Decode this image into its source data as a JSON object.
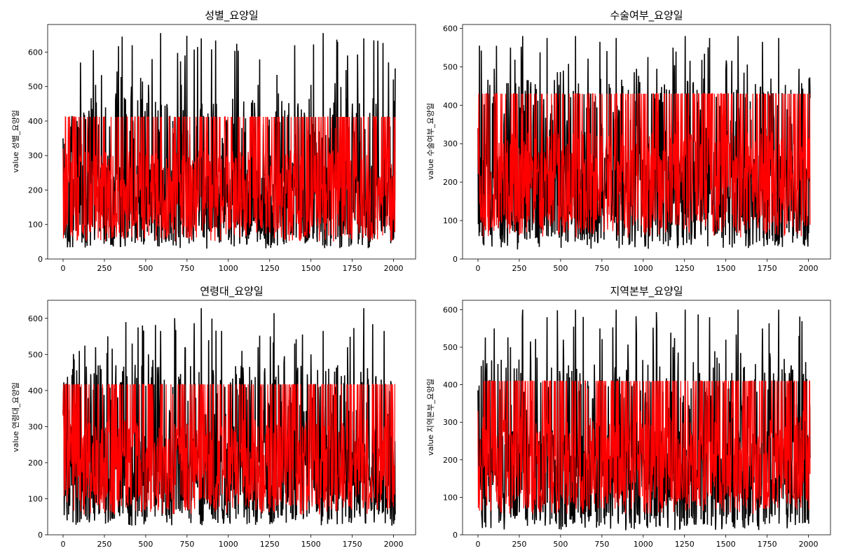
{
  "colors": {
    "series_black": "#000000",
    "series_red": "#ff0000"
  },
  "chart_data": [
    {
      "type": "line",
      "title": "성별_요양일",
      "xlabel": "",
      "ylabel": "value 성별_요양일",
      "xlim": [
        0,
        2040
      ],
      "ylim": [
        0,
        680
      ],
      "xticks": [
        0,
        250,
        500,
        750,
        1000,
        1250,
        1500,
        1750,
        2000
      ],
      "yticks": [
        0,
        100,
        200,
        300,
        400,
        500,
        600
      ],
      "grid": false,
      "series": [
        {
          "color": "#000000",
          "n_points": 2040,
          "typical_range": [
            30,
            655
          ],
          "values_sample": [
            350,
            90,
            310,
            150,
            380,
            60,
            240,
            110,
            505,
            80,
            195,
            300,
            45,
            480,
            130,
            260,
            70,
            620,
            140,
            210,
            50,
            505,
            310,
            90,
            655,
            180,
            60,
            400,
            250,
            100,
            590,
            45,
            270,
            160,
            640,
            210,
            80,
            450,
            130,
            300
          ]
        },
        {
          "color": "#ff0000",
          "n_points": 2040,
          "typical_range": [
            50,
            412
          ],
          "cap": 412,
          "values_sample": [
            320,
            100,
            280,
            160,
            240,
            70,
            412,
            120,
            300,
            90,
            210,
            270,
            60,
            412,
            150,
            230,
            80,
            412,
            140,
            200,
            60,
            412,
            300,
            100,
            412,
            170,
            70,
            380,
            240,
            110,
            412,
            60,
            260,
            150,
            412,
            200,
            90,
            412,
            140,
            290
          ]
        }
      ]
    },
    {
      "type": "line",
      "title": "수술여부_요양일",
      "xlabel": "",
      "ylabel": "value 수술여부_요양일",
      "xlim": [
        0,
        2040
      ],
      "ylim": [
        0,
        610
      ],
      "xticks": [
        0,
        250,
        500,
        750,
        1000,
        1250,
        1500,
        1750,
        2000
      ],
      "yticks": [
        0,
        100,
        200,
        300,
        400,
        500,
        600
      ],
      "grid": false,
      "series": [
        {
          "color": "#000000",
          "n_points": 2040,
          "typical_range": [
            25,
            580
          ],
          "values_sample": [
            340,
            60,
            300,
            140,
            495,
            80,
            230,
            110,
            550,
            70,
            190,
            580,
            50,
            460,
            130,
            255,
            75,
            575,
            140,
            200,
            55,
            490,
            300,
            90,
            580,
            170,
            65,
            410,
            250,
            95,
            565,
            50,
            270,
            150,
            575,
            210,
            80,
            440,
            125,
            495
          ]
        },
        {
          "color": "#ff0000",
          "n_points": 2040,
          "typical_range": [
            55,
            430
          ],
          "cap": 430,
          "values_sample": [
            340,
            95,
            280,
            160,
            430,
            80,
            230,
            120,
            300,
            90,
            200,
            430,
            70,
            430,
            150,
            240,
            85,
            430,
            140,
            210,
            70,
            430,
            300,
            100,
            430,
            170,
            75,
            390,
            250,
            110,
            430,
            70,
            260,
            150,
            430,
            200,
            90,
            430,
            140,
            300
          ]
        }
      ]
    },
    {
      "type": "line",
      "title": "연령대_요양일",
      "xlabel": "",
      "ylabel": "value 연령대_요양일",
      "xlim": [
        0,
        2040
      ],
      "ylim": [
        0,
        650
      ],
      "xticks": [
        0,
        250,
        500,
        750,
        1000,
        1250,
        1500,
        1750,
        2000
      ],
      "yticks": [
        0,
        100,
        200,
        300,
        400,
        500,
        600
      ],
      "grid": false,
      "series": [
        {
          "color": "#000000",
          "n_points": 2040,
          "typical_range": [
            25,
            628
          ],
          "values_sample": [
            335,
            40,
            300,
            150,
            510,
            70,
            240,
            100,
            520,
            60,
            190,
            550,
            45,
            470,
            120,
            250,
            60,
            530,
            140,
            200,
            50,
            500,
            300,
            90,
            565,
            170,
            55,
            410,
            250,
            95,
            520,
            45,
            260,
            150,
            628,
            210,
            70,
            440,
            120,
            565
          ]
        },
        {
          "color": "#ff0000",
          "n_points": 2040,
          "typical_range": [
            55,
            417
          ],
          "cap": 417,
          "values_sample": [
            330,
            90,
            280,
            160,
            417,
            80,
            230,
            120,
            300,
            90,
            200,
            417,
            70,
            417,
            150,
            240,
            80,
            417,
            140,
            210,
            70,
            417,
            300,
            100,
            417,
            170,
            70,
            390,
            250,
            110,
            417,
            70,
            260,
            150,
            417,
            200,
            90,
            417,
            140,
            300
          ]
        }
      ]
    },
    {
      "type": "line",
      "title": "지역본부_요양일",
      "xlabel": "",
      "ylabel": "value 지역본부_요양일",
      "xlim": [
        0,
        2040
      ],
      "ylim": [
        0,
        625
      ],
      "xticks": [
        0,
        250,
        500,
        750,
        1000,
        1250,
        1500,
        1750,
        2000
      ],
      "yticks": [
        0,
        100,
        200,
        300,
        400,
        500,
        600
      ],
      "grid": false,
      "series": [
        {
          "color": "#000000",
          "n_points": 2040,
          "typical_range": [
            12,
            600
          ],
          "values_sample": [
            385,
            40,
            300,
            150,
            550,
            70,
            240,
            100,
            500,
            60,
            190,
            600,
            45,
            460,
            120,
            250,
            60,
            580,
            140,
            200,
            15,
            520,
            300,
            90,
            600,
            170,
            55,
            410,
            250,
            95,
            550,
            45,
            260,
            150,
            600,
            210,
            70,
            440,
            120,
            530
          ]
        },
        {
          "color": "#ff0000",
          "n_points": 2040,
          "typical_range": [
            55,
            410
          ],
          "cap": 410,
          "values_sample": [
            330,
            90,
            280,
            160,
            410,
            80,
            230,
            120,
            300,
            90,
            200,
            410,
            70,
            410,
            150,
            240,
            80,
            410,
            140,
            210,
            70,
            410,
            300,
            100,
            410,
            170,
            70,
            390,
            250,
            110,
            410,
            70,
            260,
            150,
            410,
            200,
            90,
            410,
            140,
            300
          ]
        }
      ]
    }
  ]
}
